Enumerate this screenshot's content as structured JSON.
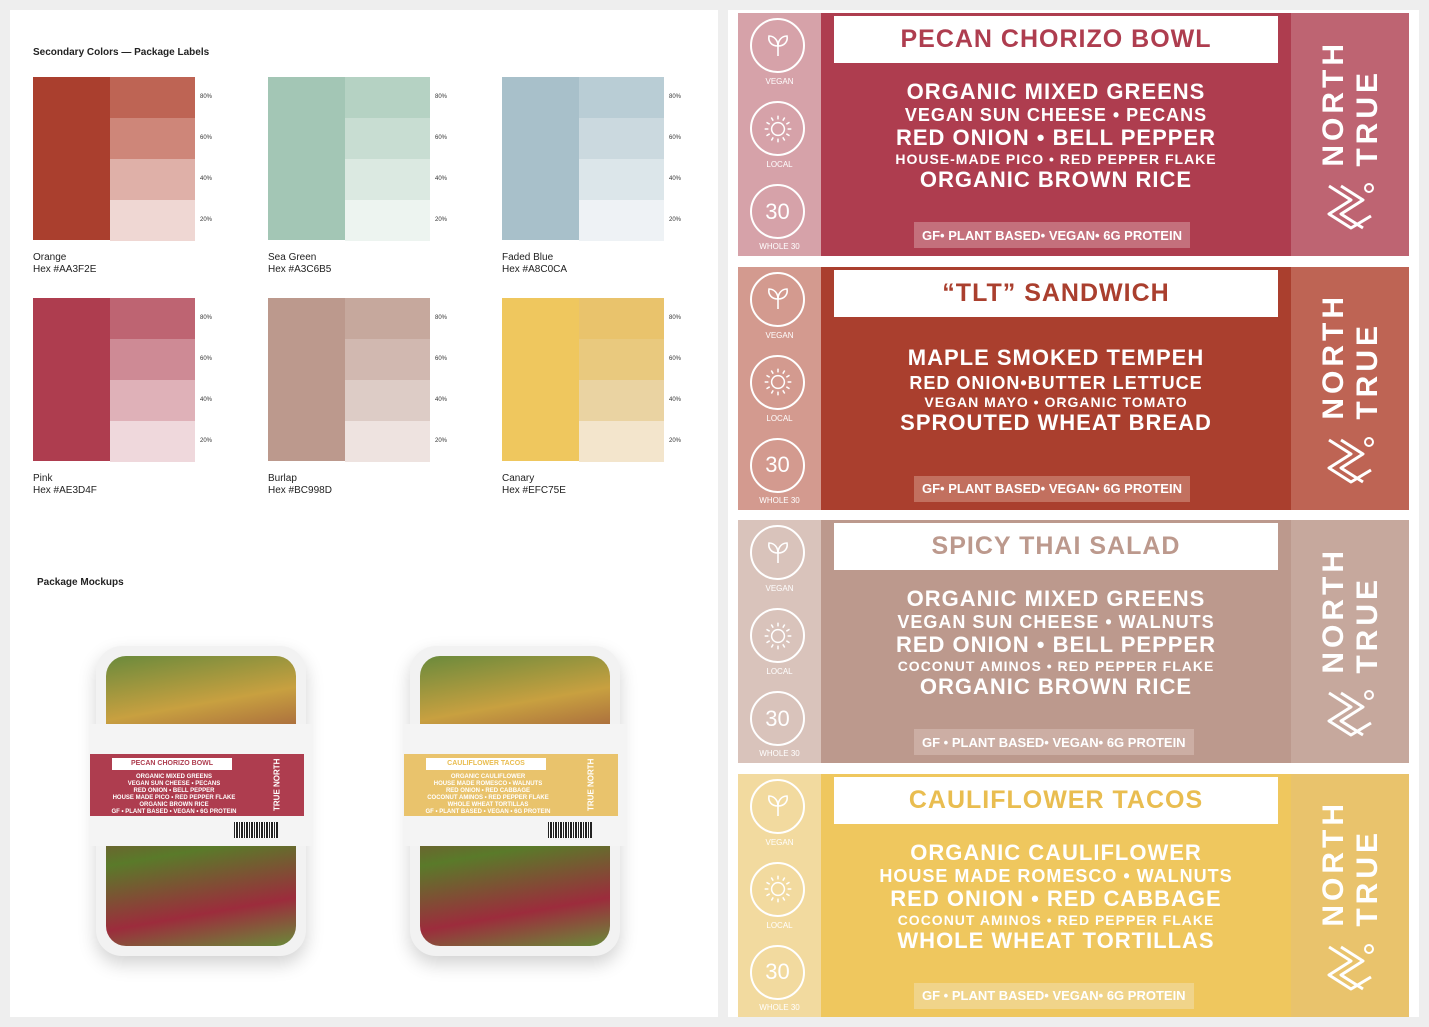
{
  "secondary_title": "Secondary Colors — Package Labels",
  "mockups_title": "Package Mockups",
  "tint_levels": [
    "80%",
    "60%",
    "40%",
    "20%"
  ],
  "swatches": [
    {
      "name": "Orange",
      "hex": "Hex #AA3F2E",
      "color": "#AA3F2E",
      "tints": [
        "#BE6454",
        "#CE8679",
        "#DFB0A8",
        "#EFD7D3"
      ]
    },
    {
      "name": "Sea Green",
      "hex": "Hex #A3C6B5",
      "color": "#A3C6B5",
      "tints": [
        "#B5D2C3",
        "#C8DDD2",
        "#DBE9E1",
        "#EDF4F0"
      ]
    },
    {
      "name": "Faded Blue",
      "hex": "Hex #A8C0CA",
      "color": "#A8C0CA",
      "tints": [
        "#B9CDD5",
        "#CBD9DF",
        "#DCE6EA",
        "#EEF2F5"
      ]
    },
    {
      "name": "Pink",
      "hex": "Hex #AE3D4F",
      "color": "#AE3D4F",
      "tints": [
        "#BE6472",
        "#CE8A95",
        "#DFB1B8",
        "#EFD8DC"
      ]
    },
    {
      "name": "Burlap",
      "hex": "Hex #BC998D",
      "color": "#BC998D",
      "tints": [
        "#C6A89D",
        "#D1B8B0",
        "#DDCCC6",
        "#EEE3E0"
      ]
    },
    {
      "name": "Canary",
      "hex": "Hex #EFC75E",
      "color": "#EFC75E",
      "tints": [
        "#E9C36C",
        "#E9C97E",
        "#EAD3A2",
        "#F3E5CC"
      ]
    }
  ],
  "labels": [
    {
      "title": "PECAN CHORIZO BOWL",
      "main": "#AE3D4F",
      "side": "#D6A2A9",
      "brand": "#BE6472",
      "title_color": "#AE3D4F",
      "tag_bg": "#C4707C",
      "lines": [
        {
          "t": "ORGANIC MIXED GREENS",
          "s": "big"
        },
        {
          "t": "VEGAN SUN CHEESE  • PECANS",
          "s": "mid"
        },
        {
          "t": "RED ONION • BELL PEPPER",
          "s": "big"
        },
        {
          "t": "HOUSE-MADE PICO •  RED PEPPER FLAKE",
          "s": "sm"
        },
        {
          "t": "ORGANIC BROWN RICE",
          "s": "big"
        }
      ],
      "tags": "GF•  PLANT BASED•  VEGAN•  6G PROTEIN"
    },
    {
      "title": "“TLT” SANDWICH",
      "main": "#AA3F2E",
      "side": "#D39A8F",
      "brand": "#BE6454",
      "title_color": "#AA3F2E",
      "tag_bg": "#C2705F",
      "lines": [
        {
          "t": "MAPLE SMOKED TEMPEH",
          "s": "big"
        },
        {
          "t": "RED ONION•BUTTER LETTUCE",
          "s": "mid"
        },
        {
          "t": "VEGAN MAYO  • ORGANIC TOMATO",
          "s": "sm"
        },
        {
          "t": "SPROUTED WHEAT BREAD",
          "s": "big"
        }
      ],
      "tags": "GF•  PLANT BASED•  VEGAN•  6G PROTEIN"
    },
    {
      "title": "SPICY THAI SALAD",
      "main": "#BC998D",
      "side": "#D9C3BB",
      "brand": "#C6A89D",
      "title_color": "#BC998D",
      "tag_bg": "#CCAEA4",
      "lines": [
        {
          "t": "ORGANIC MIXED GREENS",
          "s": "big"
        },
        {
          "t": "VEGAN SUN CHEESE  • WALNUTS",
          "s": "mid"
        },
        {
          "t": "RED ONION •  BELL PEPPER",
          "s": "big"
        },
        {
          "t": "COCONUT AMINOS • RED PEPPER FLAKE",
          "s": "sm"
        },
        {
          "t": "ORGANIC BROWN RICE",
          "s": "big"
        }
      ],
      "tags": "GF •  PLANT BASED•  VEGAN•  6G PROTEIN"
    },
    {
      "title": "CAULIFLOWER TACOS",
      "main": "#EFC75E",
      "side": "#F2DA9F",
      "brand": "#E9C36C",
      "title_color": "#E9BD50",
      "tag_bg": "#F0D48A",
      "lines": [
        {
          "t": "ORGANIC CAULIFLOWER",
          "s": "big"
        },
        {
          "t": "HOUSE MADE ROMESCO • WALNUTS",
          "s": "mid"
        },
        {
          "t": "RED ONION •  RED CABBAGE",
          "s": "big"
        },
        {
          "t": "COCONUT AMINOS • RED PEPPER FLAKE",
          "s": "sm"
        },
        {
          "t": "WHOLE WHEAT TORTILLAS",
          "s": "big"
        }
      ],
      "tags": "GF •  PLANT BASED•  VEGAN•  6G PROTEIN"
    }
  ],
  "side_icons": {
    "vegan": "VEGAN",
    "local": "LOCAL",
    "whole30_num": "30",
    "whole30": "WHOLE 30"
  },
  "brand": {
    "line1": "TRUE",
    "line2": "NORTH"
  },
  "mockups": [
    {
      "title": "PECAN CHORIZO BOWL",
      "main": "#AE3D4F",
      "title_color": "#AE3D4F",
      "lines": [
        "ORGANIC MIXED GREENS",
        "VEGAN SUN CHEESE • PECANS",
        "RED ONION • BELL PEPPER",
        "HOUSE MADE PICO • RED PEPPER FLAKE",
        "ORGANIC BROWN RICE",
        "GF • PLANT BASED • VEGAN • 6G PROTEIN"
      ]
    },
    {
      "title": "CAULIFLOWER TACOS",
      "main": "#E9C36C",
      "title_color": "#E9BD50",
      "lines": [
        "ORGANIC CAULIFLOWER",
        "HOUSE MADE ROMESCO • WALNUTS",
        "RED ONION • RED CABBAGE",
        "COCONUT AMINOS • RED PEPPER FLAKE",
        "WHOLE WHEAT TORTILLAS",
        "GF • PLANT BASED • VEGAN • 6G PROTEIN"
      ]
    }
  ]
}
